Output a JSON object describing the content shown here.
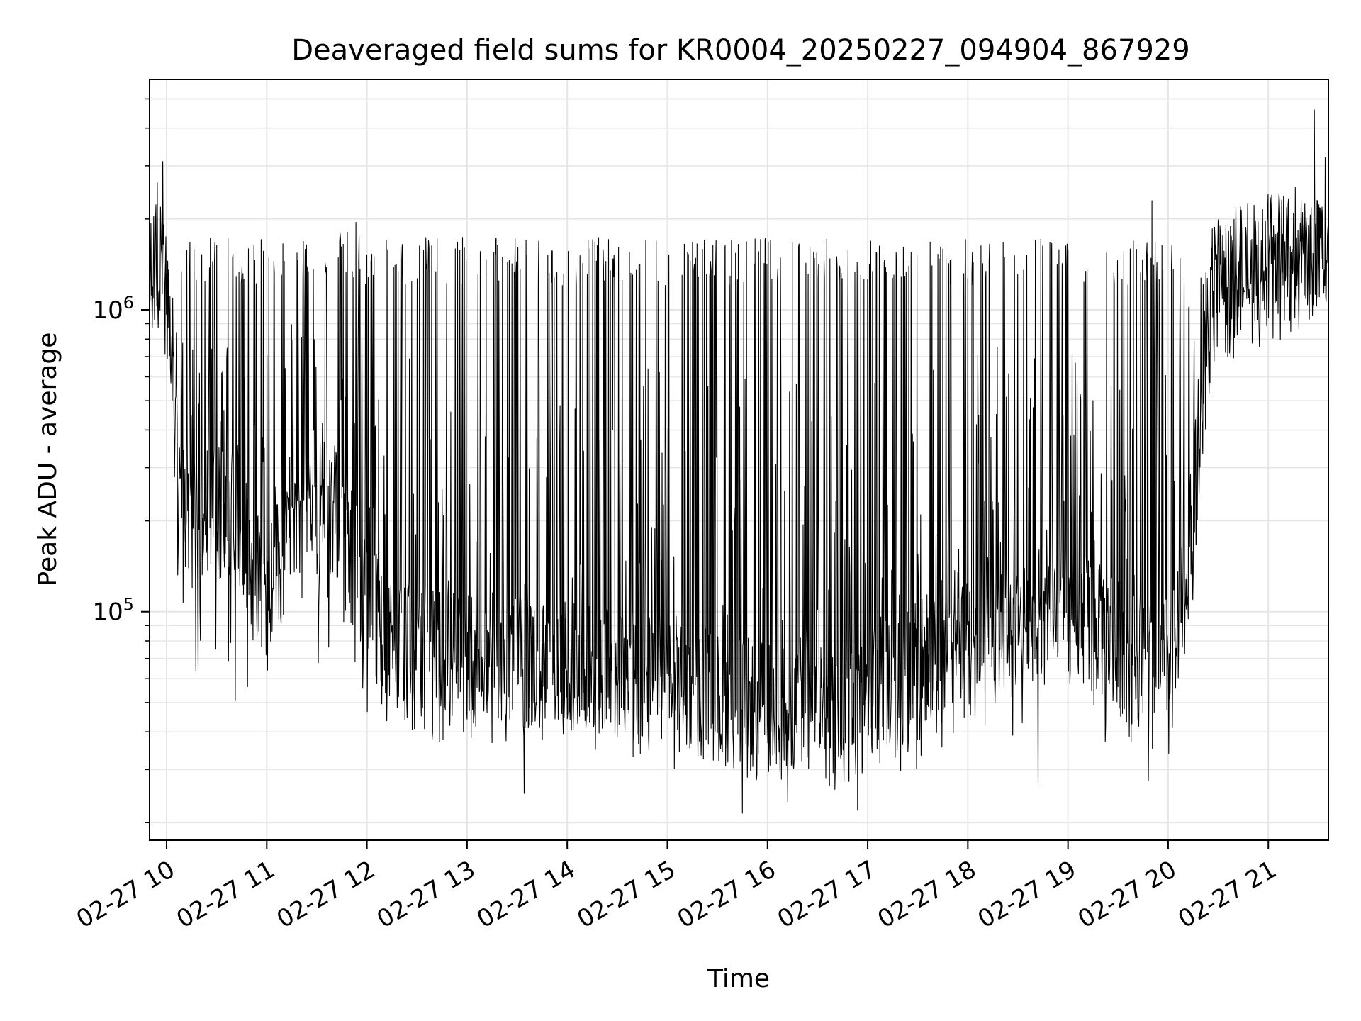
{
  "chart_data": {
    "type": "line",
    "title": "Deaveraged field sums for KR0004_20250227_094904_867929",
    "xlabel": "Time",
    "ylabel": "Peak ADU - average",
    "x_ticks": [
      "02-27 10",
      "02-27 11",
      "02-27 12",
      "02-27 13",
      "02-27 14",
      "02-27 15",
      "02-27 16",
      "02-27 17",
      "02-27 18",
      "02-27 19",
      "02-27 20",
      "02-27 21"
    ],
    "x_tick_hours": [
      10,
      11,
      12,
      13,
      14,
      15,
      16,
      17,
      18,
      19,
      20,
      21
    ],
    "y_ticks": [
      {
        "base": "10",
        "exp": "5",
        "value": 100000
      },
      {
        "base": "10",
        "exp": "6",
        "value": 1000000
      }
    ],
    "yscale": "log",
    "xlim_hours": [
      9.83,
      21.6
    ],
    "ylim": [
      17500,
      5800000
    ],
    "grid": true,
    "line_color": "#000000",
    "grid_color": "#e6e6e6",
    "series": [
      {
        "profile": {
          "hours": [
            9.83,
            9.9,
            9.98,
            10.05,
            10.12,
            10.2,
            10.3,
            10.5,
            10.7,
            10.85,
            11.0,
            11.15,
            11.35,
            11.6,
            11.8,
            12.0,
            12.15,
            12.4,
            13.0,
            13.5,
            14.0,
            14.5,
            15.0,
            15.5,
            15.9,
            16.3,
            16.6,
            17.0,
            17.4,
            17.8,
            18.2,
            18.5,
            18.8,
            19.2,
            19.6,
            19.9,
            20.05,
            20.15,
            20.25,
            20.35,
            20.45,
            21.6
          ],
          "low": [
            1200000,
            1400000,
            1100000,
            700000,
            300000,
            200000,
            180000,
            210000,
            220000,
            150000,
            110000,
            160000,
            260000,
            230000,
            160000,
            120000,
            80000,
            75000,
            70000,
            68000,
            65000,
            62000,
            60000,
            52000,
            48000,
            50000,
            54000,
            56000,
            62000,
            80000,
            95000,
            90000,
            100000,
            92000,
            72000,
            65000,
            70000,
            110000,
            200000,
            450000,
            1100000,
            1500000
          ],
          "high": [
            2200000,
            2600000,
            1600000,
            1200000,
            1200000,
            1500000,
            1500000,
            1500000,
            1500000,
            1500000,
            1500000,
            1500000,
            1500000,
            1500000,
            1600000,
            1500000,
            1500000,
            1500000,
            1500000,
            1500000,
            1500000,
            1500000,
            1500000,
            1500000,
            1500000,
            1500000,
            1500000,
            1500000,
            1500000,
            1500000,
            1500000,
            1500000,
            1500000,
            1500000,
            1500000,
            1500000,
            1500000,
            1200000,
            900000,
            1300000,
            1800000,
            2500000
          ],
          "min": [
            1000000,
            1100000,
            800000,
            500000,
            90000,
            70000,
            60000,
            55000,
            50000,
            50000,
            55000,
            60000,
            60000,
            55000,
            55000,
            45000,
            40000,
            38000,
            36000,
            36000,
            36000,
            34000,
            30000,
            28000,
            27000,
            26000,
            25000,
            26000,
            28000,
            35000,
            40000,
            38000,
            38000,
            38000,
            33000,
            30000,
            32000,
            50000,
            100000,
            300000,
            900000,
            1100000
          ]
        },
        "spikes": [
          {
            "hour": 9.96,
            "value": 3100000
          },
          {
            "hour": 11.89,
            "value": 1950000
          },
          {
            "hour": 19.84,
            "value": 2300000
          },
          {
            "hour": 21.46,
            "value": 4600000
          },
          {
            "hour": 21.57,
            "value": 3200000
          },
          {
            "hour": 13.57,
            "value": 25000
          },
          {
            "hour": 15.75,
            "value": 21500
          },
          {
            "hour": 16.2,
            "value": 23500
          },
          {
            "hour": 16.9,
            "value": 22000
          },
          {
            "hour": 18.7,
            "value": 27000
          },
          {
            "hour": 19.8,
            "value": 27500
          }
        ]
      }
    ]
  }
}
